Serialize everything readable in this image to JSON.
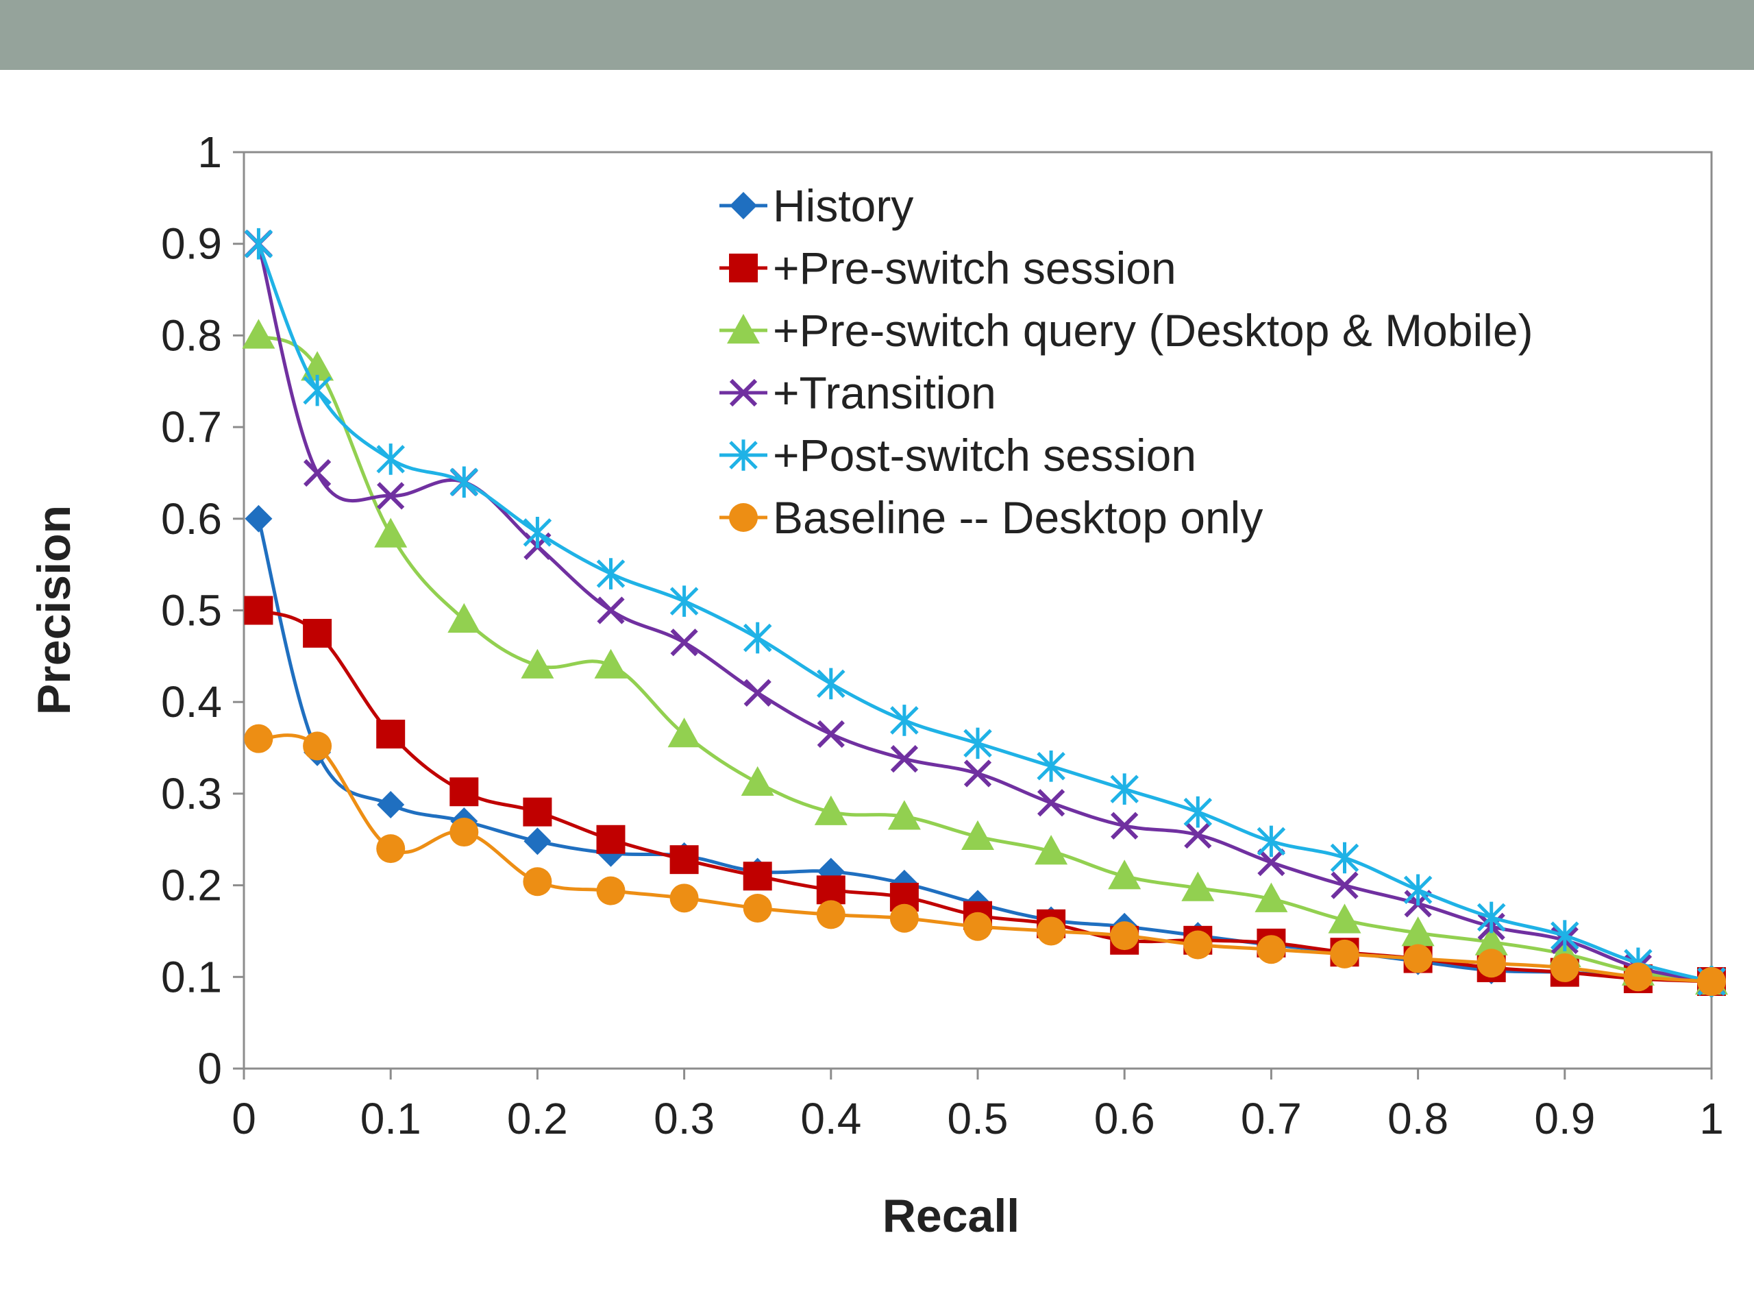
{
  "page": {
    "banner_color": "#95a39b"
  },
  "chart_data": {
    "type": "line",
    "title": "",
    "xlabel": "Recall",
    "ylabel": "Precision",
    "xlim": [
      0,
      1
    ],
    "ylim": [
      0,
      1
    ],
    "x_ticks": [
      0,
      0.1,
      0.2,
      0.3,
      0.4,
      0.5,
      0.6,
      0.7,
      0.8,
      0.9,
      1
    ],
    "x_tick_labels": [
      "0",
      "0.1",
      "0.2",
      "0.3",
      "0.4",
      "0.5",
      "0.6",
      "0.7",
      "0.8",
      "0.9",
      "1"
    ],
    "y_ticks": [
      0,
      0.1,
      0.2,
      0.3,
      0.4,
      0.5,
      0.6,
      0.7,
      0.8,
      0.9,
      1
    ],
    "y_tick_labels": [
      "0",
      "0.1",
      "0.2",
      "0.3",
      "0.4",
      "0.5",
      "0.6",
      "0.7",
      "0.8",
      "0.9",
      "1"
    ],
    "grid": false,
    "legend_position": "top-right",
    "x": [
      0.01,
      0.05,
      0.1,
      0.15,
      0.2,
      0.25,
      0.3,
      0.35,
      0.4,
      0.45,
      0.5,
      0.55,
      0.6,
      0.65,
      0.7,
      0.75,
      0.8,
      0.85,
      0.9,
      0.95,
      1
    ],
    "series": [
      {
        "name": "History",
        "color": "#1f6fc0",
        "marker": "diamond",
        "values": [
          0.6,
          0.345,
          0.288,
          0.27,
          0.248,
          0.235,
          0.232,
          0.215,
          0.215,
          0.202,
          0.18,
          0.162,
          0.155,
          0.145,
          0.135,
          0.127,
          0.117,
          0.107,
          0.105,
          0.1,
          0.095
        ]
      },
      {
        "name": "+Pre-switch session",
        "color": "#c00000",
        "marker": "square",
        "values": [
          0.5,
          0.475,
          0.365,
          0.302,
          0.28,
          0.25,
          0.228,
          0.21,
          0.195,
          0.187,
          0.167,
          0.158,
          0.14,
          0.14,
          0.137,
          0.127,
          0.12,
          0.11,
          0.105,
          0.098,
          0.095
        ]
      },
      {
        "name": "+Pre-switch query (Desktop & Mobile)",
        "color": "#92d050",
        "marker": "triangle",
        "values": [
          0.8,
          0.765,
          0.583,
          0.49,
          0.44,
          0.44,
          0.365,
          0.312,
          0.28,
          0.275,
          0.253,
          0.237,
          0.21,
          0.197,
          0.185,
          0.162,
          0.148,
          0.138,
          0.125,
          0.105,
          0.095
        ]
      },
      {
        "name": "+Transition",
        "color": "#7030a0",
        "marker": "x",
        "values": [
          0.9,
          0.65,
          0.625,
          0.64,
          0.57,
          0.5,
          0.465,
          0.41,
          0.365,
          0.338,
          0.322,
          0.29,
          0.265,
          0.255,
          0.225,
          0.2,
          0.18,
          0.155,
          0.14,
          0.11,
          0.095
        ]
      },
      {
        "name": "+Post-switch session",
        "color": "#1fb2e6",
        "marker": "asterisk",
        "values": [
          0.9,
          0.74,
          0.665,
          0.64,
          0.585,
          0.54,
          0.51,
          0.47,
          0.42,
          0.38,
          0.355,
          0.33,
          0.305,
          0.28,
          0.248,
          0.23,
          0.195,
          0.165,
          0.145,
          0.115,
          0.095
        ]
      },
      {
        "name": "Baseline -- Desktop only",
        "color": "#ed8e14",
        "marker": "circle",
        "values": [
          0.36,
          0.352,
          0.24,
          0.258,
          0.204,
          0.194,
          0.186,
          0.175,
          0.168,
          0.164,
          0.155,
          0.15,
          0.145,
          0.135,
          0.13,
          0.125,
          0.12,
          0.115,
          0.11,
          0.1,
          0.095
        ]
      }
    ]
  }
}
